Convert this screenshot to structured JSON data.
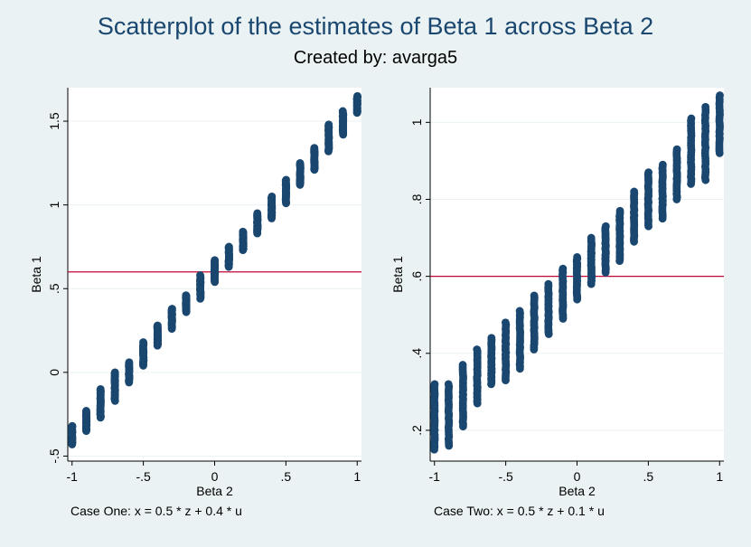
{
  "title": "Scatterplot of the estimates of Beta 1 across Beta 2",
  "subtitle": "Created by: avarga5",
  "colors": {
    "background": "#eaf2f3",
    "plot_background": "#ffffff",
    "marker": "#1a476f",
    "reference_line": "#c10534",
    "title": "#1a476f",
    "grid": "#eaf2f3"
  },
  "chart_data": [
    {
      "type": "scatter",
      "title": "",
      "xlabel": "Beta 2",
      "ylabel": "Beta 1",
      "note": "Case One: x = 0.5 * z + 0.4 * u",
      "xlim": [
        -1.03,
        1.03
      ],
      "ylim": [
        -0.53,
        1.7
      ],
      "xticks": [
        {
          "value": -1,
          "label": "-1"
        },
        {
          "value": -0.5,
          "label": "-.5"
        },
        {
          "value": 0,
          "label": "0"
        },
        {
          "value": 0.5,
          "label": ".5"
        },
        {
          "value": 1,
          "label": "1"
        }
      ],
      "yticks": [
        {
          "value": -0.5,
          "label": "-.5"
        },
        {
          "value": 0,
          "label": "0"
        },
        {
          "value": 0.5,
          "label": ".5"
        },
        {
          "value": 1,
          "label": "1"
        },
        {
          "value": 1.5,
          "label": "1.5"
        }
      ],
      "grid": "horizontal",
      "reference_line_y": 0.6,
      "series": [
        {
          "clusters": [
            {
              "x": -1.0,
              "y_min": -0.43,
              "y_max": -0.32
            },
            {
              "x": -0.9,
              "y_min": -0.35,
              "y_max": -0.23
            },
            {
              "x": -0.8,
              "y_min": -0.27,
              "y_max": -0.1
            },
            {
              "x": -0.7,
              "y_min": -0.17,
              "y_max": 0.0
            },
            {
              "x": -0.6,
              "y_min": -0.06,
              "y_max": 0.06
            },
            {
              "x": -0.5,
              "y_min": 0.04,
              "y_max": 0.18
            },
            {
              "x": -0.4,
              "y_min": 0.16,
              "y_max": 0.28
            },
            {
              "x": -0.3,
              "y_min": 0.26,
              "y_max": 0.38
            },
            {
              "x": -0.2,
              "y_min": 0.36,
              "y_max": 0.46
            },
            {
              "x": -0.1,
              "y_min": 0.44,
              "y_max": 0.58
            },
            {
              "x": 0.0,
              "y_min": 0.54,
              "y_max": 0.67
            },
            {
              "x": 0.1,
              "y_min": 0.63,
              "y_max": 0.75
            },
            {
              "x": 0.2,
              "y_min": 0.73,
              "y_max": 0.84
            },
            {
              "x": 0.3,
              "y_min": 0.83,
              "y_max": 0.95
            },
            {
              "x": 0.4,
              "y_min": 0.92,
              "y_max": 1.05
            },
            {
              "x": 0.5,
              "y_min": 1.01,
              "y_max": 1.15
            },
            {
              "x": 0.6,
              "y_min": 1.12,
              "y_max": 1.25
            },
            {
              "x": 0.7,
              "y_min": 1.21,
              "y_max": 1.34
            },
            {
              "x": 0.8,
              "y_min": 1.32,
              "y_max": 1.48
            },
            {
              "x": 0.9,
              "y_min": 1.42,
              "y_max": 1.56
            },
            {
              "x": 1.0,
              "y_min": 1.55,
              "y_max": 1.65
            }
          ]
        }
      ]
    },
    {
      "type": "scatter",
      "title": "",
      "xlabel": "Beta 2",
      "ylabel": "Beta 1",
      "note": "Case Two: x = 0.5 * z + 0.1 * u",
      "xlim": [
        -1.03,
        1.03
      ],
      "ylim": [
        0.12,
        1.09
      ],
      "xticks": [
        {
          "value": -1,
          "label": "-1"
        },
        {
          "value": -0.5,
          "label": "-.5"
        },
        {
          "value": 0,
          "label": "0"
        },
        {
          "value": 0.5,
          "label": ".5"
        },
        {
          "value": 1,
          "label": "1"
        }
      ],
      "yticks": [
        {
          "value": 0.2,
          "label": ".2"
        },
        {
          "value": 0.4,
          "label": ".4"
        },
        {
          "value": 0.6,
          "label": ".6"
        },
        {
          "value": 0.8,
          "label": ".8"
        },
        {
          "value": 1.0,
          "label": "1"
        }
      ],
      "grid": "horizontal",
      "reference_line_y": 0.6,
      "series": [
        {
          "clusters": [
            {
              "x": -1.0,
              "y_min": 0.15,
              "y_max": 0.32
            },
            {
              "x": -0.9,
              "y_min": 0.16,
              "y_max": 0.32
            },
            {
              "x": -0.8,
              "y_min": 0.21,
              "y_max": 0.37
            },
            {
              "x": -0.7,
              "y_min": 0.27,
              "y_max": 0.41
            },
            {
              "x": -0.6,
              "y_min": 0.32,
              "y_max": 0.44
            },
            {
              "x": -0.5,
              "y_min": 0.33,
              "y_max": 0.48
            },
            {
              "x": -0.4,
              "y_min": 0.36,
              "y_max": 0.51
            },
            {
              "x": -0.3,
              "y_min": 0.41,
              "y_max": 0.55
            },
            {
              "x": -0.2,
              "y_min": 0.45,
              "y_max": 0.58
            },
            {
              "x": -0.1,
              "y_min": 0.49,
              "y_max": 0.62
            },
            {
              "x": 0.0,
              "y_min": 0.54,
              "y_max": 0.65
            },
            {
              "x": 0.1,
              "y_min": 0.58,
              "y_max": 0.7
            },
            {
              "x": 0.2,
              "y_min": 0.61,
              "y_max": 0.73
            },
            {
              "x": 0.3,
              "y_min": 0.64,
              "y_max": 0.77
            },
            {
              "x": 0.4,
              "y_min": 0.69,
              "y_max": 0.82
            },
            {
              "x": 0.5,
              "y_min": 0.73,
              "y_max": 0.87
            },
            {
              "x": 0.6,
              "y_min": 0.75,
              "y_max": 0.89
            },
            {
              "x": 0.7,
              "y_min": 0.8,
              "y_max": 0.93
            },
            {
              "x": 0.8,
              "y_min": 0.84,
              "y_max": 1.01
            },
            {
              "x": 0.9,
              "y_min": 0.85,
              "y_max": 1.04
            },
            {
              "x": 1.0,
              "y_min": 0.92,
              "y_max": 1.07
            }
          ]
        }
      ]
    }
  ]
}
